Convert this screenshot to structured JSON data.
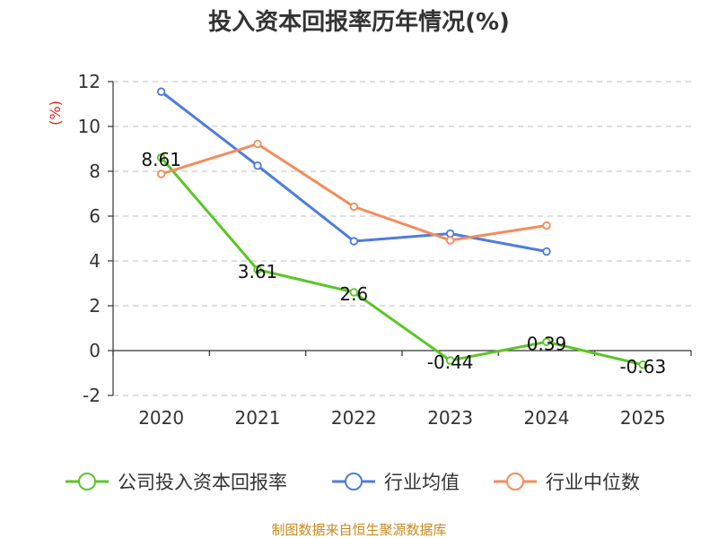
{
  "chart_data": {
    "type": "line",
    "title": "投入资本回报率历年情况(%)",
    "ylabel": "(%)",
    "xlabel": "",
    "categories": [
      "2020",
      "2021",
      "2022",
      "2023",
      "2024",
      "2025"
    ],
    "ylim": [
      -2,
      12
    ],
    "yticks": [
      -2,
      0,
      2,
      4,
      6,
      8,
      10,
      12
    ],
    "grid": true,
    "legend_position": "bottom",
    "series": [
      {
        "name": "公司投入资本回报率",
        "color": "#5dc528",
        "values": [
          8.61,
          3.61,
          2.6,
          -0.44,
          0.39,
          -0.63
        ],
        "labels": [
          "8.61",
          "3.61",
          "2.6",
          "-0.44",
          "0.39",
          "-0.63"
        ]
      },
      {
        "name": "行业均值",
        "color": "#4f7ddc",
        "values": [
          11.55,
          8.25,
          4.88,
          5.22,
          4.42,
          null
        ]
      },
      {
        "name": "行业中位数",
        "color": "#f58c5a",
        "values": [
          7.88,
          9.22,
          6.42,
          4.92,
          5.58,
          null
        ]
      }
    ]
  },
  "source": "制图数据来自恒生聚源数据库"
}
